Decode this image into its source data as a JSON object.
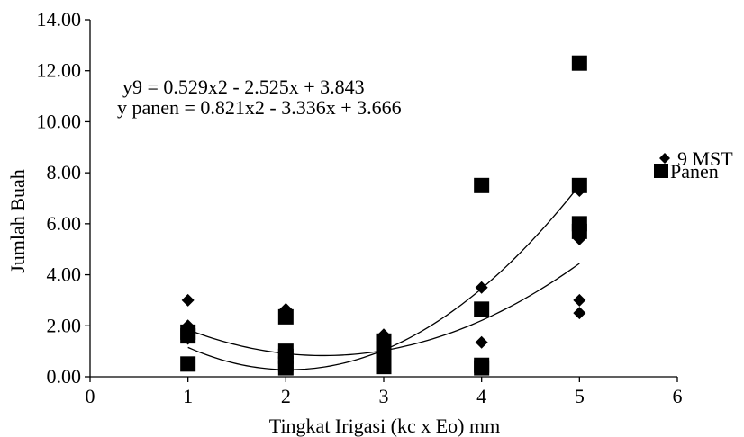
{
  "chart_data": {
    "type": "scatter",
    "xlabel": "Tingkat Irigasi (kc x Eo) mm",
    "ylabel": "Jumlah Buah",
    "xlim": [
      0,
      6
    ],
    "ylim": [
      0,
      14
    ],
    "x_ticks": [
      "0",
      "1",
      "2",
      "3",
      "4",
      "5",
      "6"
    ],
    "y_ticks": [
      "0.00",
      "2.00",
      "4.00",
      "6.00",
      "8.00",
      "10.00",
      "12.00",
      "14.00"
    ],
    "grid": false,
    "legend_position": "right",
    "series": [
      {
        "name": "9 MST",
        "marker": "diamond",
        "color": "#000000",
        "points": [
          [
            1,
            3.0
          ],
          [
            1,
            2.0
          ],
          [
            1,
            1.5
          ],
          [
            2,
            2.65
          ],
          [
            2,
            2.4
          ],
          [
            2,
            0.5
          ],
          [
            3,
            1.65
          ],
          [
            3,
            1.0
          ],
          [
            3,
            0.8
          ],
          [
            4,
            3.5
          ],
          [
            4,
            1.35
          ],
          [
            5,
            7.3
          ],
          [
            5,
            5.4
          ],
          [
            5,
            3.0
          ],
          [
            5,
            2.5
          ]
        ],
        "trendline": {
          "a": 0.529,
          "b": -2.525,
          "c": 3.843
        }
      },
      {
        "name": "Panen",
        "marker": "square",
        "color": "#000000",
        "points": [
          [
            1,
            1.75
          ],
          [
            1,
            1.6
          ],
          [
            1,
            0.5
          ],
          [
            2,
            2.35
          ],
          [
            2,
            1.0
          ],
          [
            2,
            0.8
          ],
          [
            2,
            0.5
          ],
          [
            2,
            0.35
          ],
          [
            3,
            1.4
          ],
          [
            3,
            1.05
          ],
          [
            3,
            0.75
          ],
          [
            3,
            0.4
          ],
          [
            4,
            7.5
          ],
          [
            4,
            2.65
          ],
          [
            4,
            0.45
          ],
          [
            4,
            0.35
          ],
          [
            5,
            12.3
          ],
          [
            5,
            7.5
          ],
          [
            5,
            6.0
          ],
          [
            5,
            5.7
          ]
        ],
        "trendline": {
          "a": 0.821,
          "b": -3.336,
          "c": 3.666
        }
      }
    ],
    "annotations": [
      "y9 = 0.529x2 - 2.525x + 3.843",
      "y panen = 0.821x2 - 3.336x + 3.666"
    ]
  }
}
